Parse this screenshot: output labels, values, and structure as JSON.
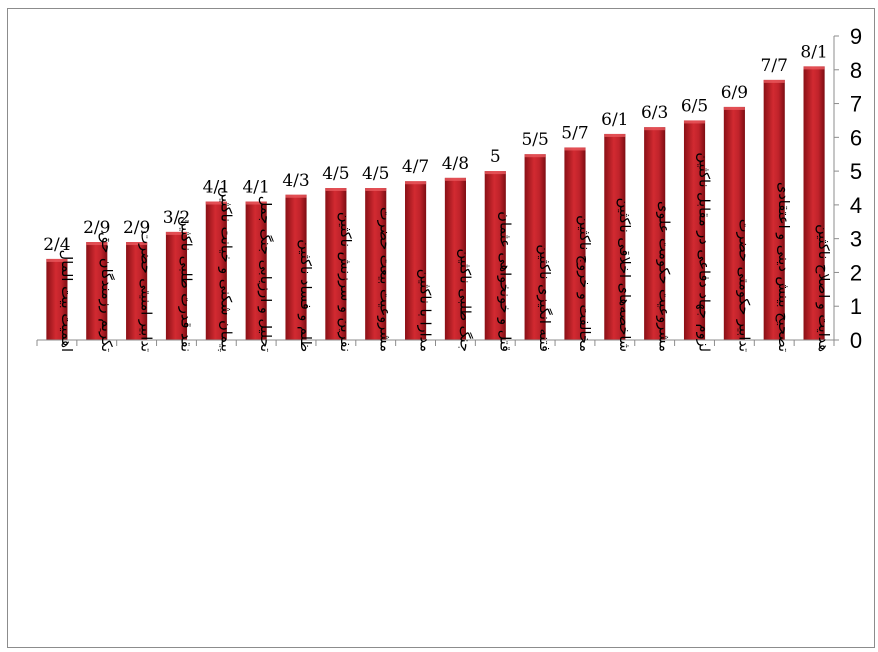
{
  "chart_data": {
    "type": "bar",
    "title": "",
    "xlabel": "",
    "ylabel": "",
    "ylim": [
      0,
      9
    ],
    "yticks": [
      "0",
      "1",
      "2",
      "3",
      "4",
      "5",
      "6",
      "7",
      "8",
      "9"
    ],
    "y_axis_position": "right",
    "grid": false,
    "legend": "none",
    "bar_color": "#c0232b",
    "categories": [
      "اهمیت بیت المال",
      "تکریم رزمندگان حق",
      "تدابیر امنیتی حضرت",
      "نقد قدرت طلبی ناکثین",
      "پیمان شکنی و خیانت ناکثین",
      "تحلیل و ارزیابی جنگ جمل",
      "ظلم و فساد ناکثین",
      "نفرین و سرزنش ناکثین",
      "مشروعیت بیعت حضرت",
      "مدارا با ناکثین",
      "جنگ طلبی ناکثین",
      "قتل و خونخواهی عثمان",
      "فتنه انگیزی ناکثین",
      "مخالفت و خروج ناکثین",
      "شاخصه‌های اخلاقی ناکثین",
      "مشروعیت حکومت علوی",
      "لزوم جهاد دفاعی در مقابل ناکثین",
      "تدابیر حکومتی حضرت",
      "تصحیح بینش دینی و اعتقادی",
      "هدایت و اصلاح ناکثین"
    ],
    "values": [
      2.4,
      2.9,
      2.9,
      3.2,
      4.1,
      4.1,
      4.3,
      4.5,
      4.5,
      4.7,
      4.8,
      5,
      5.5,
      5.7,
      6.1,
      6.3,
      6.5,
      6.9,
      7.7,
      8.1
    ],
    "data_labels": [
      "2/4",
      "2/9",
      "2/9",
      "3/2",
      "4/1",
      "4/1",
      "4/3",
      "4/5",
      "4/5",
      "4/7",
      "4/8",
      "5",
      "5/5",
      "5/7",
      "6/1",
      "6/3",
      "6/5",
      "6/9",
      "7/7",
      "8/1"
    ]
  }
}
